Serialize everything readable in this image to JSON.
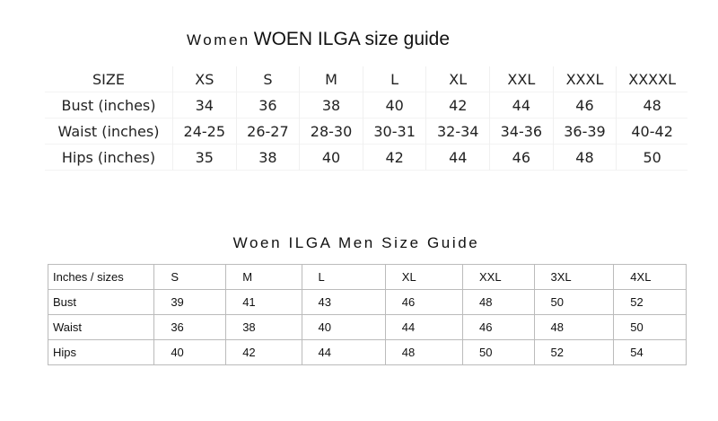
{
  "women": {
    "title_prefix": "Women",
    "title": "WOEN ILGA size guide",
    "rows": [
      [
        "SIZE",
        "XS",
        "S",
        "M",
        "L",
        "XL",
        "XXL",
        "XXXL",
        "XXXXL"
      ],
      [
        "Bust (inches)",
        "34",
        "36",
        "38",
        "40",
        "42",
        "44",
        "46",
        "48"
      ],
      [
        "Waist (inches)",
        "24-25",
        "26-27",
        "28-30",
        "30-31",
        "32-34",
        "34-36",
        "36-39",
        "40-42"
      ],
      [
        "Hips (inches)",
        "35",
        "38",
        "40",
        "42",
        "44",
        "46",
        "48",
        "50"
      ]
    ]
  },
  "men": {
    "title": "Woen ILGA Men Size Guide",
    "rows": [
      [
        "Inches / sizes",
        "S",
        "M",
        "L",
        "XL",
        "XXL",
        "3XL",
        "4XL"
      ],
      [
        "Bust",
        "39",
        "41",
        "43",
        "46",
        "48",
        "50",
        "52"
      ],
      [
        "Waist",
        "36",
        "38",
        "40",
        "44",
        "46",
        "48",
        "50"
      ],
      [
        "Hips",
        "40",
        "42",
        "44",
        "48",
        "50",
        "52",
        "54"
      ]
    ]
  }
}
